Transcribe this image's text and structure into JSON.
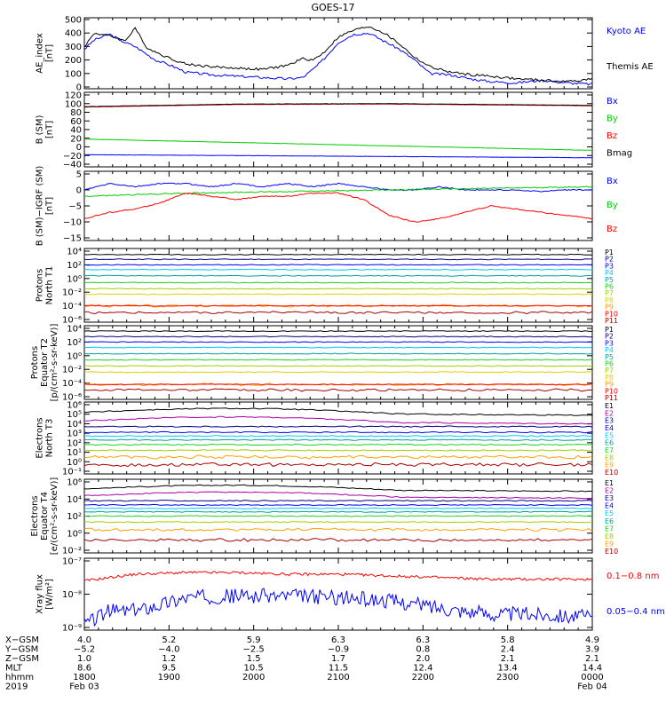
{
  "title": "GOES-17",
  "colors": {
    "black": "#000000",
    "blue": "#0000ff",
    "green": "#00cc00",
    "red": "#ff0000",
    "darkred": "#aa0000",
    "navy": "#000080",
    "cyan": "#00c8ff",
    "teal": "#00a0a0",
    "ltgreen": "#20d020",
    "olive": "#a0d000",
    "yellow": "#e0d000",
    "orange": "#ffa000",
    "magenta": "#aa00aa"
  },
  "chart_data": [
    {
      "type": "line",
      "panel": "ae",
      "ylabel": [
        "AE_index",
        "[nT]"
      ],
      "yticks": [
        "500",
        "400",
        "300",
        "200",
        "100",
        "0"
      ],
      "ylim": [
        0,
        500
      ],
      "series": [
        {
          "name": "Kyoto AE",
          "color": "blue",
          "x": [
            0,
            0.02,
            0.05,
            0.08,
            0.1,
            0.12,
            0.14,
            0.17,
            0.2,
            0.25,
            0.3,
            0.35,
            0.4,
            0.43,
            0.45,
            0.47,
            0.5,
            0.53,
            0.56,
            0.59,
            0.62,
            0.65,
            0.68,
            0.72,
            0.76,
            0.8,
            0.85,
            0.9,
            0.95,
            1.0
          ],
          "y": [
            280,
            350,
            390,
            330,
            300,
            250,
            200,
            160,
            110,
            90,
            80,
            70,
            60,
            70,
            130,
            200,
            330,
            390,
            400,
            340,
            280,
            200,
            100,
            90,
            60,
            40,
            30,
            50,
            30,
            20
          ]
        },
        {
          "name": "Themis AE",
          "color": "black",
          "x": [
            0,
            0.02,
            0.05,
            0.08,
            0.1,
            0.12,
            0.14,
            0.17,
            0.2,
            0.25,
            0.3,
            0.35,
            0.4,
            0.43,
            0.45,
            0.47,
            0.5,
            0.53,
            0.56,
            0.59,
            0.62,
            0.65,
            0.68,
            0.72,
            0.76,
            0.8,
            0.85,
            0.9,
            0.95,
            1.0
          ],
          "y": [
            300,
            400,
            380,
            340,
            440,
            300,
            260,
            210,
            170,
            150,
            140,
            130,
            160,
            210,
            200,
            250,
            370,
            420,
            450,
            400,
            320,
            220,
            150,
            110,
            90,
            80,
            60,
            50,
            40,
            60
          ]
        }
      ]
    },
    {
      "type": "line",
      "panel": "bsm",
      "ylabel": [
        "B (SM)",
        "[nT]"
      ],
      "yticks": [
        "120",
        "100",
        "80",
        "60",
        "40",
        "20",
        "0",
        "−20",
        "−40"
      ],
      "ylim": [
        -40,
        120
      ],
      "series": [
        {
          "name": "Bx",
          "color": "blue",
          "x": [
            0,
            1
          ],
          "y": [
            -18,
            -25
          ]
        },
        {
          "name": "By",
          "color": "green",
          "x": [
            0,
            1
          ],
          "y": [
            18,
            -8
          ]
        },
        {
          "name": "Bz",
          "color": "red",
          "x": [
            0,
            0.3,
            0.6,
            1
          ],
          "y": [
            92,
            98,
            99,
            95
          ]
        },
        {
          "name": "Bmag",
          "color": "black",
          "x": [
            0,
            0.3,
            0.6,
            1
          ],
          "y": [
            93,
            99,
            100,
            96
          ]
        }
      ]
    },
    {
      "type": "line",
      "panel": "bsmigrf",
      "ylabel": [
        "B (SM)−IGRF (SM)",
        "[nT]"
      ],
      "yticks": [
        "5",
        "0",
        "−5",
        "−10",
        "−15"
      ],
      "ylim": [
        -15,
        5
      ],
      "series": [
        {
          "name": "Bx",
          "color": "blue",
          "x": [
            0,
            0.05,
            0.1,
            0.15,
            0.2,
            0.25,
            0.3,
            0.35,
            0.4,
            0.45,
            0.5,
            0.55,
            0.6,
            0.65,
            0.7,
            0.75,
            0.8,
            0.85,
            0.9,
            0.95,
            1.0
          ],
          "y": [
            0,
            2,
            1,
            2,
            2,
            1,
            2,
            1,
            2,
            1,
            2,
            1,
            0,
            0,
            1,
            0,
            0,
            0,
            -0.5,
            0,
            0
          ]
        },
        {
          "name": "By",
          "color": "green",
          "x": [
            0,
            0.2,
            0.4,
            0.6,
            0.8,
            1.0
          ],
          "y": [
            -2,
            -1,
            -0.5,
            0,
            0.5,
            1
          ]
        },
        {
          "name": "Bz",
          "color": "red",
          "x": [
            0,
            0.05,
            0.1,
            0.15,
            0.2,
            0.25,
            0.3,
            0.35,
            0.4,
            0.45,
            0.5,
            0.55,
            0.6,
            0.65,
            0.7,
            0.75,
            0.8,
            0.85,
            0.9,
            0.95,
            1.0
          ],
          "y": [
            -9,
            -7,
            -6,
            -4,
            -1,
            -2,
            -3,
            -2,
            -2,
            -1,
            -1,
            -3,
            -8,
            -10,
            -9,
            -7,
            -5,
            -6,
            -7,
            -8,
            -9
          ]
        }
      ]
    },
    {
      "type": "line",
      "panel": "pnorth",
      "ylabel": [
        "Protons",
        "North T1"
      ],
      "yticks": [
        "10⁴",
        "10²",
        "10⁰",
        "10⁻²",
        "10⁻⁴",
        "10⁻⁶"
      ],
      "yexp": [
        4,
        -6
      ],
      "series": [
        {
          "name": "P1",
          "color": "black",
          "level": 3.5
        },
        {
          "name": "P2",
          "color": "navy",
          "level": 2.8
        },
        {
          "name": "P3",
          "color": "blue",
          "level": 2.0
        },
        {
          "name": "P4",
          "color": "cyan",
          "level": 1.3
        },
        {
          "name": "P5",
          "color": "teal",
          "level": 0.4
        },
        {
          "name": "P6",
          "color": "ltgreen",
          "level": -0.6
        },
        {
          "name": "P7",
          "color": "olive",
          "level": -1.5
        },
        {
          "name": "P8",
          "color": "yellow",
          "level": -2.3
        },
        {
          "name": "P9",
          "color": "orange",
          "level": -4.0
        },
        {
          "name": "P10",
          "color": "red",
          "level": -4.0
        },
        {
          "name": "P11",
          "color": "darkred",
          "level": -5.0
        }
      ]
    },
    {
      "type": "line",
      "panel": "pequator",
      "ylabel": [
        "Protons",
        "Equator T2",
        "[p/(cm²-s-sr-keV)]"
      ],
      "yticks": [
        "10⁴",
        "10²",
        "10⁰",
        "10⁻²",
        "10⁻⁴",
        "10⁻⁶"
      ],
      "yexp": [
        4,
        -6
      ],
      "series": [
        {
          "name": "P1",
          "color": "black",
          "level": 3.6
        },
        {
          "name": "P2",
          "color": "navy",
          "level": 2.8
        },
        {
          "name": "P3",
          "color": "blue",
          "level": 2.0
        },
        {
          "name": "P4",
          "color": "cyan",
          "level": 1.2
        },
        {
          "name": "P5",
          "color": "teal",
          "level": 0.3
        },
        {
          "name": "P6",
          "color": "ltgreen",
          "level": -0.6
        },
        {
          "name": "P7",
          "color": "olive",
          "level": -1.5
        },
        {
          "name": "P8",
          "color": "yellow",
          "level": -2.4
        },
        {
          "name": "P9",
          "color": "orange",
          "level": -4.2
        },
        {
          "name": "P10",
          "color": "red",
          "level": -4.2
        },
        {
          "name": "P11",
          "color": "darkred",
          "level": -5.0
        }
      ]
    },
    {
      "type": "line",
      "panel": "enorth",
      "ylabel": [
        "Electrons",
        "North T3"
      ],
      "yticks": [
        "10⁶",
        "10⁵",
        "10⁴",
        "10³",
        "10²",
        "10¹",
        "10⁰",
        "10⁻¹"
      ],
      "yexp": [
        6,
        -1
      ],
      "series": [
        {
          "name": "E1",
          "color": "black",
          "level": 5.2
        },
        {
          "name": "E2",
          "color": "magenta",
          "level": 4.3
        },
        {
          "name": "E3",
          "color": "navy",
          "level": 3.7
        },
        {
          "name": "E4",
          "color": "blue",
          "level": 3.1
        },
        {
          "name": "E5",
          "color": "cyan",
          "level": 2.7
        },
        {
          "name": "E6",
          "color": "teal",
          "level": 2.3
        },
        {
          "name": "E7",
          "color": "ltgreen",
          "level": 1.8
        },
        {
          "name": "E8",
          "color": "olive",
          "level": 1.2
        },
        {
          "name": "E9",
          "color": "orange",
          "level": 0.5
        },
        {
          "name": "E10",
          "color": "darkred",
          "level": -0.3
        }
      ]
    },
    {
      "type": "line",
      "panel": "eequator",
      "ylabel": [
        "Electrons",
        "Equator T4",
        "[e/(cm²-s-sr-keV)]"
      ],
      "yticks": [
        "10⁶",
        "10⁴",
        "10²",
        "10⁰",
        "10⁻²"
      ],
      "yexp": [
        6,
        -2
      ],
      "series": [
        {
          "name": "E1",
          "color": "black",
          "level": 5.2
        },
        {
          "name": "E2",
          "color": "magenta",
          "level": 4.4
        },
        {
          "name": "E3",
          "color": "navy",
          "level": 3.8
        },
        {
          "name": "E4",
          "color": "blue",
          "level": 3.3
        },
        {
          "name": "E5",
          "color": "cyan",
          "level": 2.9
        },
        {
          "name": "E6",
          "color": "teal",
          "level": 2.5
        },
        {
          "name": "E7",
          "color": "ltgreen",
          "level": 2.0
        },
        {
          "name": "E8",
          "color": "olive",
          "level": 1.3
        },
        {
          "name": "E9",
          "color": "orange",
          "level": 0.4
        },
        {
          "name": "E10",
          "color": "darkred",
          "level": -0.8
        }
      ]
    },
    {
      "type": "line",
      "panel": "xray",
      "ylabel": [
        "Xray flux",
        "[W/m²]"
      ],
      "yticks": [
        "10⁻⁷",
        "10⁻⁸",
        "10⁻⁹"
      ],
      "yexp": [
        -7,
        -9
      ],
      "series": [
        {
          "name": "0.1−0.8 nm",
          "color": "red",
          "x": [
            0,
            0.05,
            0.1,
            0.2,
            0.3,
            0.4,
            0.5,
            0.6,
            0.7,
            0.8,
            0.9,
            1.0
          ],
          "y": [
            -7.6,
            -7.5,
            -7.4,
            -7.35,
            -7.35,
            -7.4,
            -7.4,
            -7.45,
            -7.5,
            -7.55,
            -7.55,
            -7.55
          ]
        },
        {
          "name": "0.05−0.4 nm",
          "color": "blue",
          "x": [
            0,
            0.05,
            0.1,
            0.2,
            0.3,
            0.4,
            0.5,
            0.6,
            0.7,
            0.8,
            0.9,
            1.0
          ],
          "y": [
            -8.9,
            -8.5,
            -8.5,
            -8.1,
            -8.05,
            -8.05,
            -8.1,
            -8.2,
            -8.4,
            -8.6,
            -8.6,
            -8.7
          ]
        }
      ]
    }
  ],
  "xlegend": {
    "rows": [
      {
        "label": "X−GSM",
        "values": [
          "4.0",
          "5.2",
          "5.9",
          "6.3",
          "6.3",
          "5.8",
          "4.9"
        ]
      },
      {
        "label": "Y−GSM",
        "values": [
          "−5.2",
          "−4.0",
          "−2.5",
          "−0.9",
          "0.8",
          "2.4",
          "3.9"
        ]
      },
      {
        "label": "Z−GSM",
        "values": [
          "1.0",
          "1.2",
          "1.5",
          "1.7",
          "2.0",
          "2.1",
          "2.1"
        ]
      },
      {
        "label": "MLT",
        "values": [
          "8.6",
          "9.5",
          "10.5",
          "11.5",
          "12.4",
          "13.4",
          "14.4"
        ]
      },
      {
        "label": "hhmm",
        "values": [
          "1800",
          "1900",
          "2000",
          "2100",
          "2200",
          "2300",
          "0000"
        ]
      },
      {
        "label": "2019",
        "values": [
          "Feb 03",
          "",
          "",
          "",
          "",
          "",
          "Feb 04"
        ]
      }
    ]
  }
}
